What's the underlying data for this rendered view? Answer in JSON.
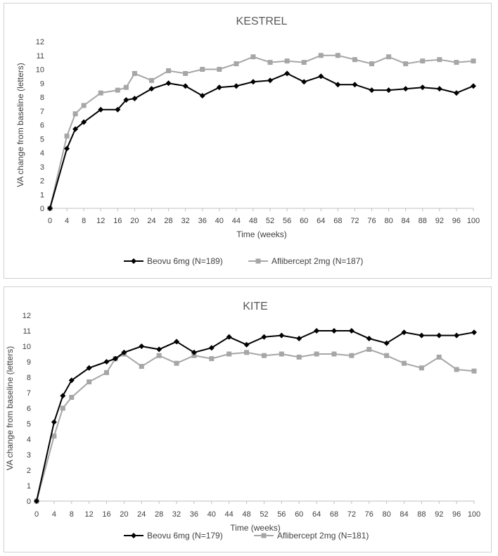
{
  "chart_data": [
    {
      "type": "line",
      "title": "KESTREL",
      "xlabel": "Time (weeks)",
      "ylabel": "VA change from baseline (letters)",
      "ylim": [
        0,
        12
      ],
      "xlim": [
        0,
        100
      ],
      "xticks": [
        0,
        4,
        8,
        12,
        16,
        20,
        24,
        28,
        32,
        36,
        40,
        44,
        48,
        52,
        56,
        60,
        64,
        68,
        72,
        76,
        80,
        84,
        88,
        92,
        96,
        100
      ],
      "yticks": [
        0,
        1,
        2,
        3,
        4,
        5,
        6,
        7,
        8,
        9,
        10,
        11,
        12
      ],
      "grid": false,
      "legend": "bottom",
      "series": [
        {
          "name": "Beovu 6mg (N=189)",
          "color": "#000000",
          "marker": "diamond",
          "x": [
            0,
            4,
            6,
            8,
            12,
            16,
            18,
            20,
            24,
            28,
            32,
            36,
            40,
            44,
            48,
            52,
            56,
            60,
            64,
            68,
            72,
            76,
            80,
            84,
            88,
            92,
            96,
            100
          ],
          "y": [
            0,
            4.3,
            5.7,
            6.2,
            7.1,
            7.1,
            7.8,
            7.9,
            8.6,
            9.0,
            8.8,
            8.1,
            8.7,
            8.8,
            9.1,
            9.2,
            9.7,
            9.1,
            9.5,
            8.9,
            8.9,
            8.5,
            8.5,
            8.6,
            8.7,
            8.6,
            8.3,
            8.8
          ]
        },
        {
          "name": "Aflibercept 2mg (N=187)",
          "color": "#a6a6a6",
          "marker": "square",
          "x": [
            0,
            4,
            6,
            8,
            12,
            16,
            18,
            20,
            24,
            28,
            32,
            36,
            40,
            44,
            48,
            52,
            56,
            60,
            64,
            68,
            72,
            76,
            80,
            84,
            88,
            92,
            96,
            100
          ],
          "y": [
            0,
            5.2,
            6.8,
            7.4,
            8.3,
            8.5,
            8.7,
            9.7,
            9.2,
            9.9,
            9.7,
            10.0,
            10.0,
            10.4,
            10.9,
            10.5,
            10.6,
            10.5,
            11.0,
            11.0,
            10.7,
            10.4,
            10.9,
            10.4,
            10.6,
            10.7,
            10.5,
            10.6
          ]
        }
      ]
    },
    {
      "type": "line",
      "title": "KITE",
      "xlabel": "Time (weeks)",
      "ylabel": "VA change from baseline (letters)",
      "ylim": [
        0,
        12
      ],
      "xlim": [
        0,
        100
      ],
      "xticks": [
        0,
        4,
        8,
        12,
        16,
        20,
        24,
        28,
        32,
        36,
        40,
        44,
        48,
        52,
        56,
        60,
        64,
        68,
        72,
        76,
        80,
        84,
        88,
        92,
        96,
        100
      ],
      "yticks": [
        0,
        1,
        2,
        3,
        4,
        5,
        6,
        7,
        8,
        9,
        10,
        11,
        12
      ],
      "grid": false,
      "legend": "bottom",
      "series": [
        {
          "name": "Beovu 6mg (N=179)",
          "color": "#000000",
          "marker": "diamond",
          "x": [
            0,
            4,
            6,
            8,
            12,
            16,
            18,
            20,
            24,
            28,
            32,
            36,
            40,
            44,
            48,
            52,
            56,
            60,
            64,
            68,
            72,
            76,
            80,
            84,
            88,
            92,
            96,
            100
          ],
          "y": [
            0,
            5.1,
            6.8,
            7.8,
            8.6,
            9.0,
            9.2,
            9.6,
            10.0,
            9.8,
            10.3,
            9.6,
            9.9,
            10.6,
            10.1,
            10.6,
            10.7,
            10.5,
            11.0,
            11.0,
            11.0,
            10.5,
            10.2,
            10.9,
            10.7,
            10.7,
            10.7,
            10.9
          ]
        },
        {
          "name": "Aflibercept 2mg (N=181)",
          "color": "#a6a6a6",
          "marker": "square",
          "x": [
            0,
            4,
            6,
            8,
            12,
            16,
            18,
            20,
            24,
            28,
            32,
            36,
            40,
            44,
            48,
            52,
            56,
            60,
            64,
            68,
            72,
            76,
            80,
            84,
            88,
            92,
            96,
            100
          ],
          "y": [
            0,
            4.2,
            6.0,
            6.7,
            7.7,
            8.3,
            9.2,
            9.5,
            8.7,
            9.4,
            8.9,
            9.4,
            9.2,
            9.5,
            9.6,
            9.4,
            9.5,
            9.3,
            9.5,
            9.5,
            9.4,
            9.8,
            9.4,
            8.9,
            8.6,
            9.3,
            8.5,
            8.4
          ]
        }
      ]
    }
  ]
}
